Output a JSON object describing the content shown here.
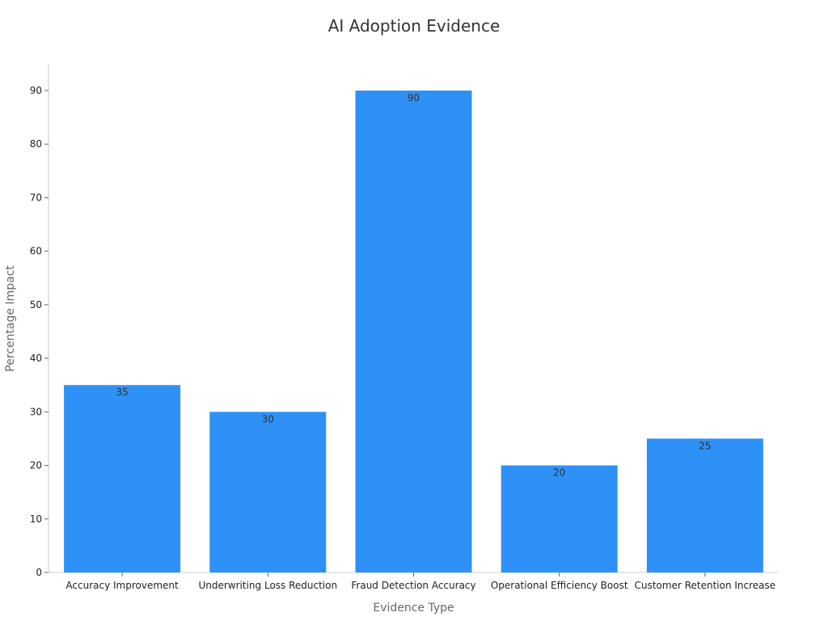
{
  "chart_data": {
    "type": "bar",
    "title": "AI Adoption Evidence",
    "xlabel": "Evidence Type",
    "ylabel": "Percentage Impact",
    "categories": [
      "Accuracy Improvement",
      "Underwriting Loss Reduction",
      "Fraud Detection Accuracy",
      "Operational Efficiency Boost",
      "Customer Retention Increase"
    ],
    "values": [
      35,
      30,
      90,
      20,
      25
    ],
    "ylim": [
      0,
      95
    ],
    "yticks": [
      0,
      10,
      20,
      30,
      40,
      50,
      60,
      70,
      80,
      90
    ],
    "grid": false,
    "legend": "none",
    "bar_color": "#2e91f8",
    "axis_color": "#cccccc"
  }
}
